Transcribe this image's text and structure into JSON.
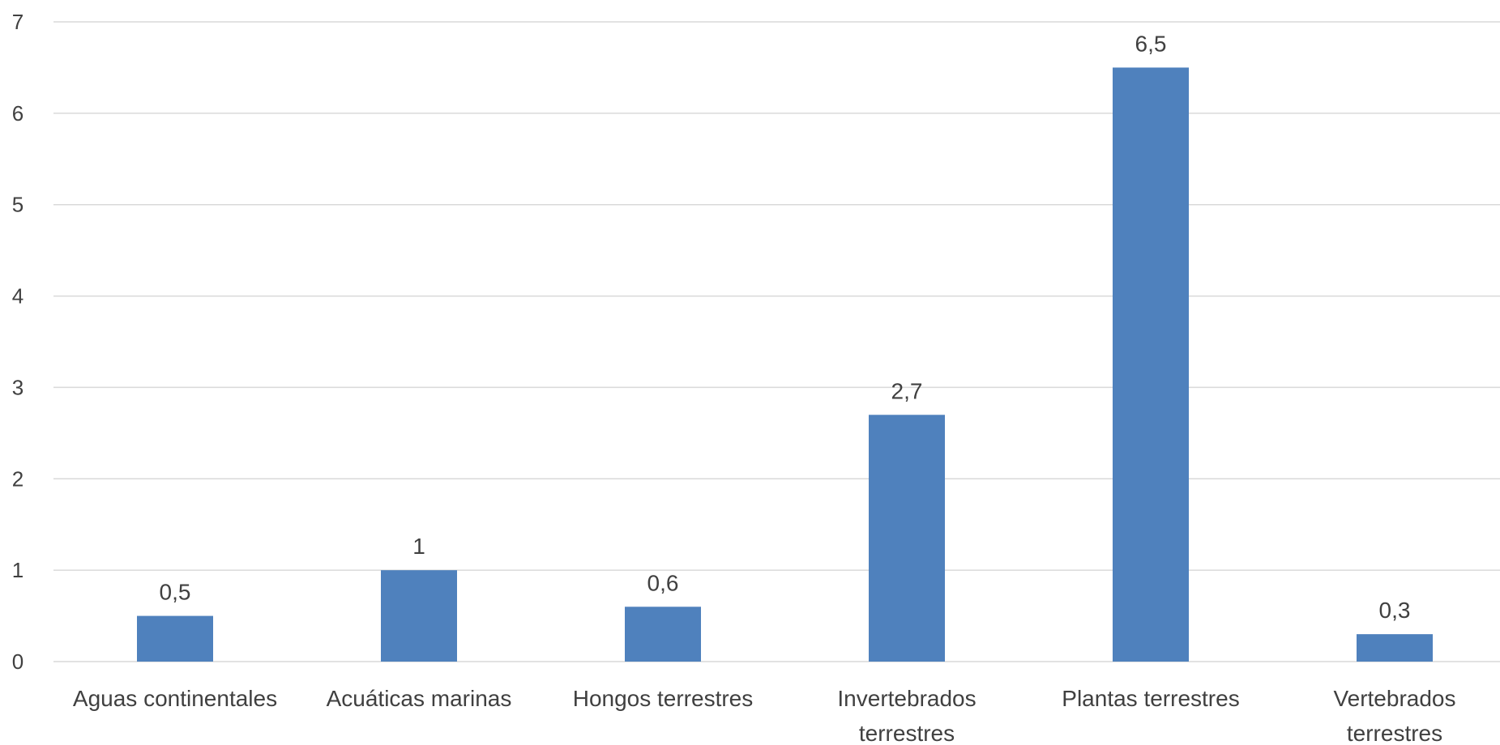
{
  "chart_data": {
    "type": "bar",
    "title": "",
    "xlabel": "",
    "ylabel": "",
    "categories": [
      [
        "Aguas continentales"
      ],
      [
        "Acuáticas marinas"
      ],
      [
        "Hongos terrestres"
      ],
      [
        "Invertebrados",
        "terrestres"
      ],
      [
        "Plantas terrestres"
      ],
      [
        "Vertebrados",
        "terrestres"
      ]
    ],
    "values": [
      0.5,
      1,
      0.6,
      2.7,
      6.5,
      0.3
    ],
    "data_labels": [
      "0,5",
      "1",
      "0,6",
      "2,7",
      "6,5",
      "0,3"
    ],
    "ylim": [
      0,
      7
    ],
    "yticks": [
      "0",
      "1",
      "2",
      "3",
      "4",
      "5",
      "6",
      "7"
    ],
    "grid": true,
    "legend": "none",
    "colors": {
      "bar": "#4f81bd",
      "grid": "#d9d9d9",
      "text": "#404040"
    }
  }
}
